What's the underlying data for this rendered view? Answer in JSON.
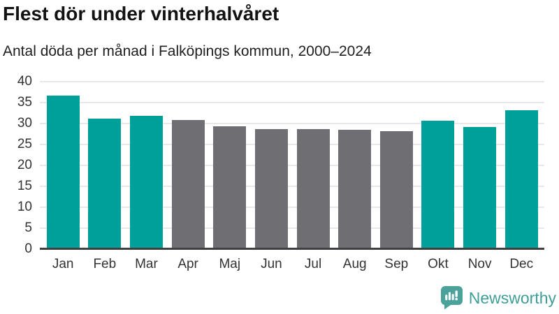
{
  "chart_data": {
    "type": "bar",
    "title": "Flest dör under vinterhalvåret",
    "subtitle": "Antal döda per månad i Falköpings kommun, 2000–2024",
    "categories": [
      "Jan",
      "Feb",
      "Mar",
      "Apr",
      "Maj",
      "Jun",
      "Jul",
      "Aug",
      "Sep",
      "Okt",
      "Nov",
      "Dec"
    ],
    "values": [
      36.6,
      31.1,
      31.9,
      30.8,
      29.4,
      28.7,
      28.7,
      28.5,
      28.1,
      30.6,
      29.1,
      33.2
    ],
    "highlighted": [
      true,
      true,
      true,
      false,
      false,
      false,
      false,
      false,
      false,
      true,
      true,
      true
    ],
    "xlabel": "",
    "ylabel": "",
    "ylim": [
      0,
      40
    ],
    "yticks": [
      0,
      5,
      10,
      15,
      20,
      25,
      30,
      35,
      40
    ],
    "grid": true,
    "legend": false,
    "colors": {
      "highlight": "#00a09a",
      "default": "#6f6e73",
      "gridline": "#e8e8e8",
      "axis": "#3f3f3f"
    }
  },
  "footer": {
    "brand": "Newsworthy",
    "brand_color": "#3f9e97",
    "logo_icon": "newsworthy-speech-bubble-barchart-icon"
  }
}
